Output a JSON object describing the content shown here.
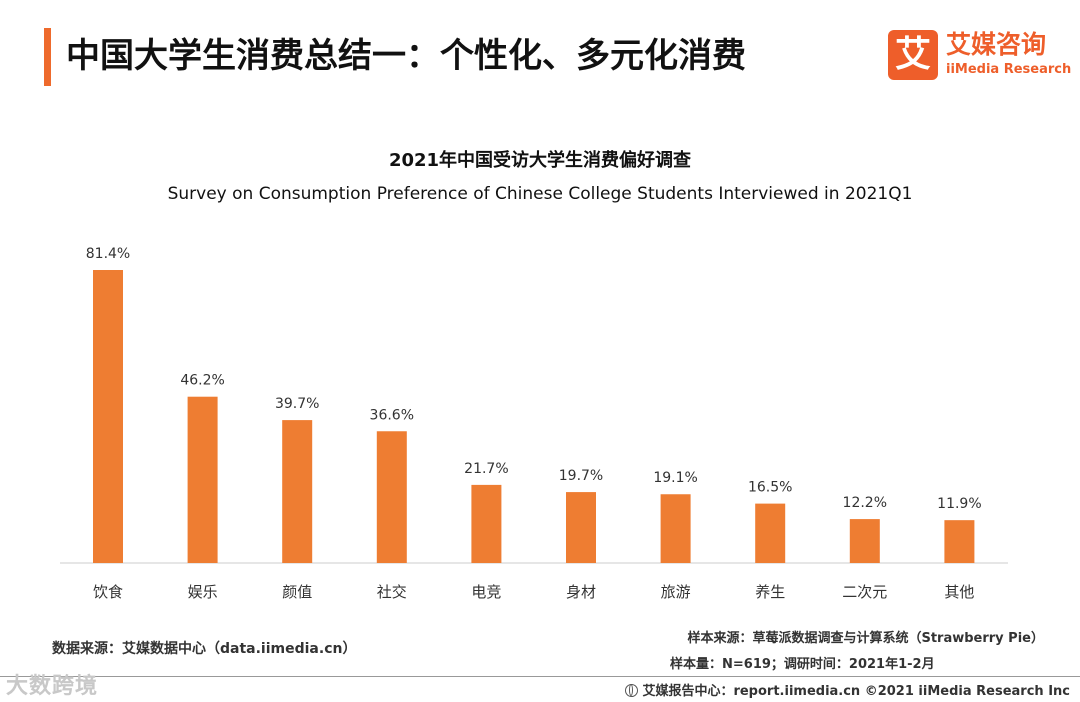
{
  "header": {
    "title": "中国大学生消费总结一：个性化、多元化消费",
    "logo_mark": "艾",
    "logo_cn": "艾媒咨询",
    "logo_en": "iiMedia Research"
  },
  "chart_data": {
    "type": "bar",
    "title": "2021年中国受访大学生消费偏好调查",
    "subtitle": "Survey on Consumption Preference of Chinese College Students Interviewed in 2021Q1",
    "categories": [
      "饮食",
      "娱乐",
      "颜值",
      "社交",
      "电竞",
      "身材",
      "旅游",
      "养生",
      "二次元",
      "其他"
    ],
    "values": [
      81.4,
      46.2,
      39.7,
      36.6,
      21.7,
      19.7,
      19.1,
      16.5,
      12.2,
      11.9
    ],
    "value_labels": [
      "81.4%",
      "46.2%",
      "39.7%",
      "36.6%",
      "21.7%",
      "19.7%",
      "19.1%",
      "16.5%",
      "12.2%",
      "11.9%"
    ],
    "unit": "%",
    "ylim": [
      0,
      81.4
    ],
    "grid": false,
    "bar_color": "#ee7d32",
    "axis_color": "#cccccc"
  },
  "sources": {
    "data_source": "数据来源：艾媒数据中心（data.iimedia.cn）",
    "sample_source": "样本来源：草莓派数据调查与计算系统（Strawberry Pie）",
    "sample_info": "样本量：N=619；调研时间：2021年1-2月"
  },
  "footer": {
    "text": "艾媒报告中心：report.iimedia.cn  ©2021  iiMedia Research  Inc"
  },
  "watermark": "大数跨境"
}
